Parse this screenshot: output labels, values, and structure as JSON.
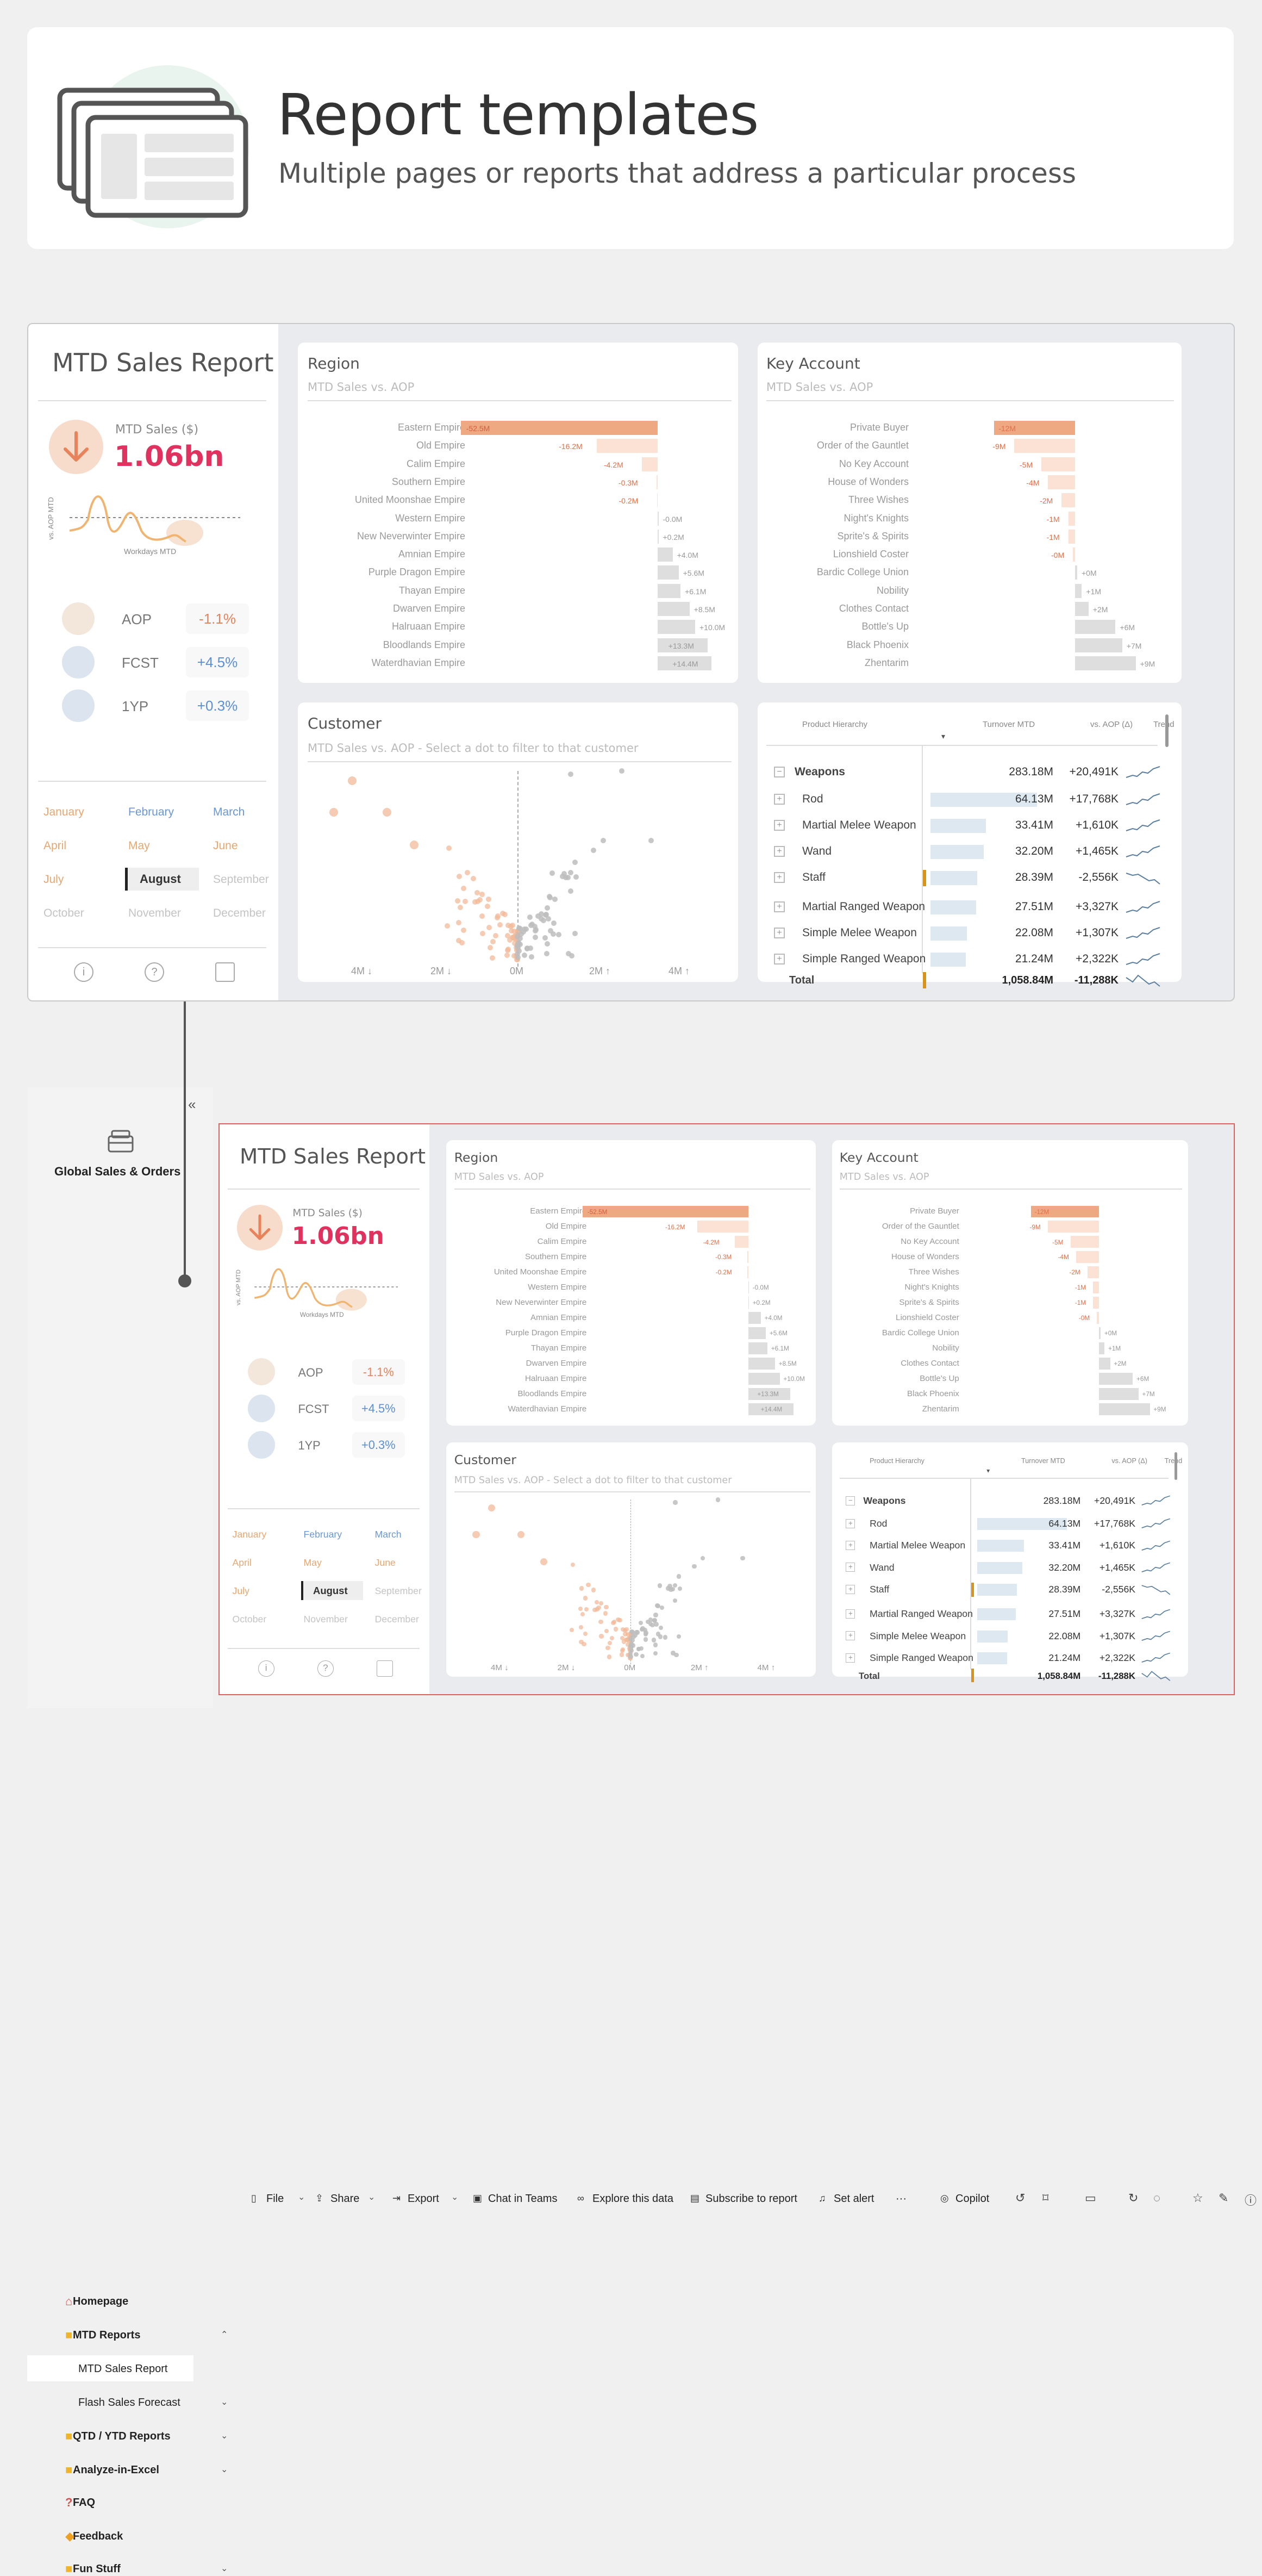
{
  "hero": {
    "title": "Report templates",
    "subtitle": "Multiple pages or reports that address a particular process"
  },
  "report": {
    "title": "MTD Sales Report",
    "kpi_label": "MTD Sales ($)",
    "kpi_value": "1.06bn",
    "spark_ylabel": "vs. AOP MTD",
    "spark_xlabel": "Workdays MTD",
    "comparisons": [
      {
        "label": "AOP",
        "value": "-1.1%",
        "color": "#e8825a"
      },
      {
        "label": "FCST",
        "value": "+4.5%",
        "color": "#5b8fd8"
      },
      {
        "label": "1YP",
        "value": "+0.3%",
        "color": "#5b8fd8"
      }
    ],
    "months": [
      {
        "name": "January",
        "state": "active"
      },
      {
        "name": "February",
        "state": "active-blue"
      },
      {
        "name": "March",
        "state": "active-blue"
      },
      {
        "name": "April",
        "state": "active"
      },
      {
        "name": "May",
        "state": "active"
      },
      {
        "name": "June",
        "state": "active"
      },
      {
        "name": "July",
        "state": "active"
      },
      {
        "name": "August",
        "state": "selected"
      },
      {
        "name": "September",
        "state": "inactive"
      },
      {
        "name": "October",
        "state": "inactive"
      },
      {
        "name": "November",
        "state": "inactive"
      },
      {
        "name": "December",
        "state": "inactive"
      }
    ],
    "footer_icons": [
      "info-icon",
      "help-icon",
      "comment-icon"
    ],
    "region": {
      "title": "Region",
      "subtitle": "MTD Sales vs. AOP",
      "rows": [
        [
          "Eastern Empire",
          -52.5,
          "-52.5M"
        ],
        [
          "Old Empire",
          -16.2,
          "-16.2M"
        ],
        [
          "Calim Empire",
          -4.2,
          "-4.2M"
        ],
        [
          "Southern Empire",
          -0.3,
          "-0.3M"
        ],
        [
          "United Moonshae Empire",
          -0.2,
          "-0.2M"
        ],
        [
          "Western Empire",
          -0.0,
          "-0.0M"
        ],
        [
          "New Neverwinter Empire",
          0.2,
          "+0.2M"
        ],
        [
          "Amnian Empire",
          4.0,
          "+4.0M"
        ],
        [
          "Purple Dragon Empire",
          5.6,
          "+5.6M"
        ],
        [
          "Thayan Empire",
          6.1,
          "+6.1M"
        ],
        [
          "Dwarven Empire",
          8.5,
          "+8.5M"
        ],
        [
          "Halruaan Empire",
          10.0,
          "+10.0M"
        ],
        [
          "Bloodlands Empire",
          13.3,
          "+13.3M"
        ],
        [
          "Waterdhavian Empire",
          14.4,
          "+14.4M"
        ]
      ]
    },
    "key_account": {
      "title": "Key Account",
      "subtitle": "MTD Sales vs. AOP",
      "rows": [
        [
          "Private Buyer",
          -12,
          "-12M"
        ],
        [
          "Order of the Gauntlet",
          -9,
          "-9M"
        ],
        [
          "No Key Account",
          -5,
          "-5M"
        ],
        [
          "House of Wonders",
          -4,
          "-4M"
        ],
        [
          "Three Wishes",
          -2,
          "-2M"
        ],
        [
          "Night's Knights",
          -1,
          "-1M"
        ],
        [
          "Sprite's & Spirits",
          -1,
          "-1M"
        ],
        [
          "Lionshield Coster",
          -0.3,
          "-0M"
        ],
        [
          "Bardic College Union",
          0.3,
          "+0M"
        ],
        [
          "Nobility",
          1,
          "+1M"
        ],
        [
          "Clothes Contact",
          2,
          "+2M"
        ],
        [
          "Bottle's Up",
          6,
          "+6M"
        ],
        [
          "Black Phoenix",
          7,
          "+7M"
        ],
        [
          "Zhentarim",
          9,
          "+9M"
        ]
      ]
    },
    "customer": {
      "title": "Customer",
      "subtitle": "MTD Sales vs. AOP - Select a dot to filter to that customer",
      "xticks": [
        "4M ↓",
        "2M ↓",
        "0M",
        "2M ↑",
        "4M ↑"
      ]
    },
    "table": {
      "headers": [
        "Product Hierarchy",
        "Turnover MTD",
        "vs. AOP (Δ)",
        "Trend"
      ],
      "rows": [
        {
          "name": "Weapons",
          "turnover": "283.18M",
          "delta": "+20,491K",
          "level": 0,
          "bar": 0,
          "warn": false,
          "bold": true,
          "expand": "minus"
        },
        {
          "name": "Rod",
          "turnover": "64.13M",
          "delta": "+17,768K",
          "level": 1,
          "bar": 1.0,
          "warn": false
        },
        {
          "name": "Martial Melee Weapon",
          "turnover": "33.41M",
          "delta": "+1,610K",
          "level": 1,
          "bar": 0.52,
          "warn": false
        },
        {
          "name": "Wand",
          "turnover": "32.20M",
          "delta": "+1,465K",
          "level": 1,
          "bar": 0.5,
          "warn": false
        },
        {
          "name": "Staff",
          "turnover": "28.39M",
          "delta": "-2,556K",
          "level": 1,
          "bar": 0.44,
          "warn": true
        },
        {
          "name": "Martial Ranged Weapon",
          "turnover": "27.51M",
          "delta": "+3,327K",
          "level": 1,
          "bar": 0.43,
          "warn": false
        },
        {
          "name": "Simple Melee Weapon",
          "turnover": "22.08M",
          "delta": "+1,307K",
          "level": 1,
          "bar": 0.34,
          "warn": false
        },
        {
          "name": "Simple Ranged Weapon",
          "turnover": "21.24M",
          "delta": "+2,322K",
          "level": 1,
          "bar": 0.33,
          "warn": false
        }
      ],
      "total": {
        "name": "Total",
        "turnover": "1,058.84M",
        "delta": "-11,288K",
        "warn": true
      }
    }
  },
  "app": {
    "workspace": "Global Sales & Orders",
    "nav": [
      {
        "label": "Homepage",
        "icon": "home-icon",
        "type": "page"
      },
      {
        "label": "MTD Reports",
        "icon": "folder-icon",
        "type": "folder",
        "chevron": "up"
      },
      {
        "label": "MTD Sales Report",
        "type": "child",
        "selected": true
      },
      {
        "label": "Flash Sales Forecast",
        "type": "child",
        "chevron": "down"
      },
      {
        "label": "QTD / YTD Reports",
        "icon": "folder-icon",
        "type": "folder",
        "chevron": "down"
      },
      {
        "label": "Analyze-in-Excel",
        "icon": "folder-icon",
        "type": "folder",
        "chevron": "down"
      },
      {
        "label": "FAQ",
        "icon": "question-icon",
        "type": "page"
      },
      {
        "label": "Feedback",
        "icon": "feedback-icon",
        "type": "page"
      },
      {
        "label": "Fun Stuff",
        "icon": "folder-icon",
        "type": "folder",
        "chevron": "down"
      }
    ],
    "toolbar": [
      {
        "label": "File",
        "icon": "file-icon",
        "caret": true
      },
      {
        "label": "Share",
        "icon": "share-icon",
        "caret": true
      },
      {
        "label": "Export",
        "icon": "export-icon",
        "caret": true
      },
      {
        "label": "Chat in Teams",
        "icon": "teams-icon"
      },
      {
        "label": "Explore this data",
        "icon": "explore-icon"
      },
      {
        "label": "Subscribe to report",
        "icon": "subscribe-icon"
      },
      {
        "label": "Set alert",
        "icon": "alert-icon"
      },
      {
        "label": "···",
        "icon": ""
      },
      {
        "label": "Copilot",
        "icon": "copilot-icon"
      }
    ],
    "toolbar_right_icons": [
      "undo-icon",
      "bookmark-icon",
      "view-icon",
      "refresh-icon",
      "comment-icon",
      "favorite-icon",
      "edit-icon",
      "info-icon"
    ]
  },
  "colors": {
    "negative": "#f2c0a4",
    "negative_strong": "#eea882",
    "positive": "#dcdcdc",
    "kpi": "#e0325f",
    "accent_orange": "#e8825a",
    "accent_blue": "#5b8fd8",
    "table_bar": "#dde8f1",
    "warn": "#d9931c",
    "red_border": "#e06060"
  }
}
